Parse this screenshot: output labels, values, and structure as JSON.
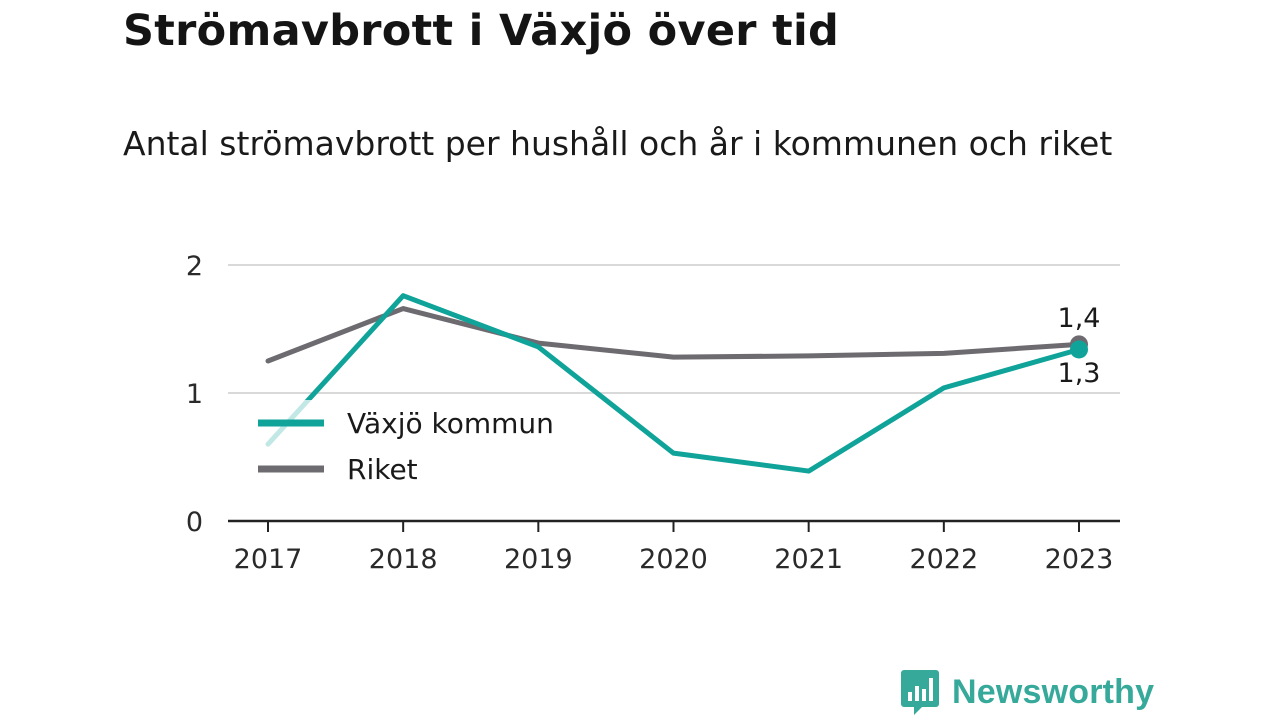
{
  "title": "Strömavbrott i Växjö över tid",
  "subtitle": "Antal strömavbrott per hushåll och år i kommunen och riket",
  "colors": {
    "teal": "#0fa39a",
    "gray": "#6e6b70",
    "grid": "#d9d9d9",
    "axis": "#222222",
    "brand": "#36a99b"
  },
  "chart_data": {
    "type": "line",
    "title": "Strömavbrott i Växjö över tid",
    "subtitle": "Antal strömavbrott per hushåll och år i kommunen och riket",
    "x": [
      "2017",
      "2018",
      "2019",
      "2020",
      "2021",
      "2022",
      "2023"
    ],
    "ylim": [
      0,
      2
    ],
    "yticks": [
      "0",
      "1",
      "2"
    ],
    "grid": true,
    "legend": "inside-left",
    "series": [
      {
        "name": "Växjö kommun",
        "color": "#0fa39a",
        "values": [
          0.6,
          1.76,
          1.36,
          0.53,
          0.39,
          1.04,
          1.34
        ]
      },
      {
        "name": "Riket",
        "color": "#6e6b70",
        "values": [
          1.25,
          1.66,
          1.39,
          1.28,
          1.29,
          1.31,
          1.38
        ]
      }
    ],
    "end_labels": [
      "1,4",
      "1,3"
    ]
  },
  "brand": {
    "name": "Newsworthy",
    "icon": "bar-chart-speech-icon"
  }
}
